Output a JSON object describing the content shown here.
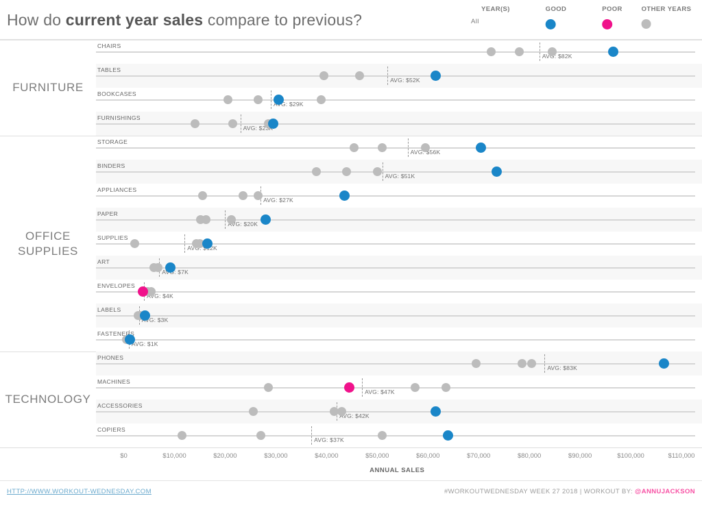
{
  "title": {
    "prefix": "How do ",
    "highlight": "current year sales",
    "suffix": " compare to previous?"
  },
  "legend": {
    "year_filter_label": "YEAR(S)",
    "year_filter_value": "All",
    "items": [
      {
        "name": "good",
        "label": "GOOD",
        "color": "#1a86c8"
      },
      {
        "name": "poor",
        "label": "POOR",
        "color": "#f0128b"
      },
      {
        "name": "other-years",
        "label": "OTHER YEARS",
        "color": "#bcbcbc"
      }
    ]
  },
  "colors": {
    "good": "#1a86c8",
    "poor": "#f0128b",
    "other": "#bcbcbc",
    "band": "#f7f7f7",
    "row_line": "#d6d6d6"
  },
  "chart_data": {
    "type": "scatter",
    "subtype": "dot-plot-by-subcategory",
    "xlabel": "ANNUAL SALES",
    "x_min": 0,
    "x_max": 110000,
    "x_ticks": [
      "$0",
      "$10,000",
      "$20,000",
      "$30,000",
      "$40,000",
      "$50,000",
      "$60,000",
      "$70,000",
      "$80,000",
      "$90,000",
      "$100,000",
      "$110,000"
    ],
    "legend_note": "current year dot colored good(blue)/poor(pink); other years gray; dashed line = average with label",
    "sections": [
      {
        "category": "FURNITURE",
        "rows": [
          {
            "label": "CHAIRS",
            "others": [
              72500,
              78000,
              84500
            ],
            "current": 96500,
            "status": "good",
            "avg": 82000,
            "avg_label": "AVG: $82K"
          },
          {
            "label": "TABLES",
            "others": [
              39500,
              46500
            ],
            "current": 61500,
            "status": "good",
            "avg": 52000,
            "avg_label": "AVG: $52K"
          },
          {
            "label": "BOOKCASES",
            "others": [
              20500,
              26500,
              39000
            ],
            "current": 30500,
            "status": "good",
            "avg": 29000,
            "avg_label": "AVG: $29K"
          },
          {
            "label": "FURNISHINGS",
            "others": [
              14000,
              21500,
              28500
            ],
            "current": 29500,
            "status": "good",
            "avg": 23000,
            "avg_label": "AVG: $23K"
          }
        ]
      },
      {
        "category": "OFFICE SUPPLIES",
        "rows": [
          {
            "label": "STORAGE",
            "others": [
              45500,
              51000,
              59500
            ],
            "current": 70500,
            "status": "good",
            "avg": 56000,
            "avg_label": "AVG: $56K"
          },
          {
            "label": "BINDERS",
            "others": [
              38000,
              44000,
              50000
            ],
            "current": 73500,
            "status": "good",
            "avg": 51000,
            "avg_label": "AVG: $51K"
          },
          {
            "label": "APPLIANCES",
            "others": [
              15500,
              23500,
              26500
            ],
            "current": 43500,
            "status": "good",
            "avg": 27000,
            "avg_label": "AVG: $27K"
          },
          {
            "label": "PAPER",
            "others": [
              15200,
              16200,
              21200
            ],
            "current": 28000,
            "status": "good",
            "avg": 20000,
            "avg_label": "AVG: $20K"
          },
          {
            "label": "SUPPLIES",
            "others": [
              2200,
              14300,
              15000
            ],
            "current": 16500,
            "status": "good",
            "avg": 12000,
            "avg_label": "AVG: $12K"
          },
          {
            "label": "ART",
            "others": [
              6000,
              6700
            ],
            "current": 9200,
            "status": "good",
            "avg": 7000,
            "avg_label": "AVG: $7K"
          },
          {
            "label": "ENVELOPES",
            "others": [
              4800,
              5400
            ],
            "current": 3800,
            "status": "poor",
            "avg": 4000,
            "avg_label": "AVG: $4K"
          },
          {
            "label": "LABELS",
            "others": [
              2900,
              3300
            ],
            "current": 4200,
            "status": "good",
            "avg": 3000,
            "avg_label": "AVG: $3K"
          },
          {
            "label": "FASTENERS",
            "others": [
              500,
              800
            ],
            "current": 1200,
            "status": "good",
            "avg": 1000,
            "avg_label": "AVG: $1K"
          }
        ]
      },
      {
        "category": "TECHNOLOGY",
        "rows": [
          {
            "label": "PHONES",
            "others": [
              69500,
              78500,
              80500
            ],
            "current": 106500,
            "status": "good",
            "avg": 83000,
            "avg_label": "AVG: $83K"
          },
          {
            "label": "MACHINES",
            "others": [
              28500,
              57500,
              63500
            ],
            "current": 44500,
            "status": "poor",
            "avg": 47000,
            "avg_label": "AVG: $47K"
          },
          {
            "label": "ACCESSORIES",
            "others": [
              25500,
              41500,
              43000
            ],
            "current": 61500,
            "status": "good",
            "avg": 42000,
            "avg_label": "AVG: $42K"
          },
          {
            "label": "COPIERS",
            "others": [
              11500,
              27000,
              51000
            ],
            "current": 64000,
            "status": "good",
            "avg": 37000,
            "avg_label": "AVG: $37K"
          }
        ]
      }
    ]
  },
  "footer": {
    "link": "HTTP://WWW.WORKOUT-WEDNESDAY.COM",
    "credit_prefix": "#WORKOUTWEDNESDAY WEEK 27 2018 | WORKOUT BY: ",
    "credit_handle": "@ANNUJACKSON",
    "credit_handle_color": "#f74fa3"
  }
}
